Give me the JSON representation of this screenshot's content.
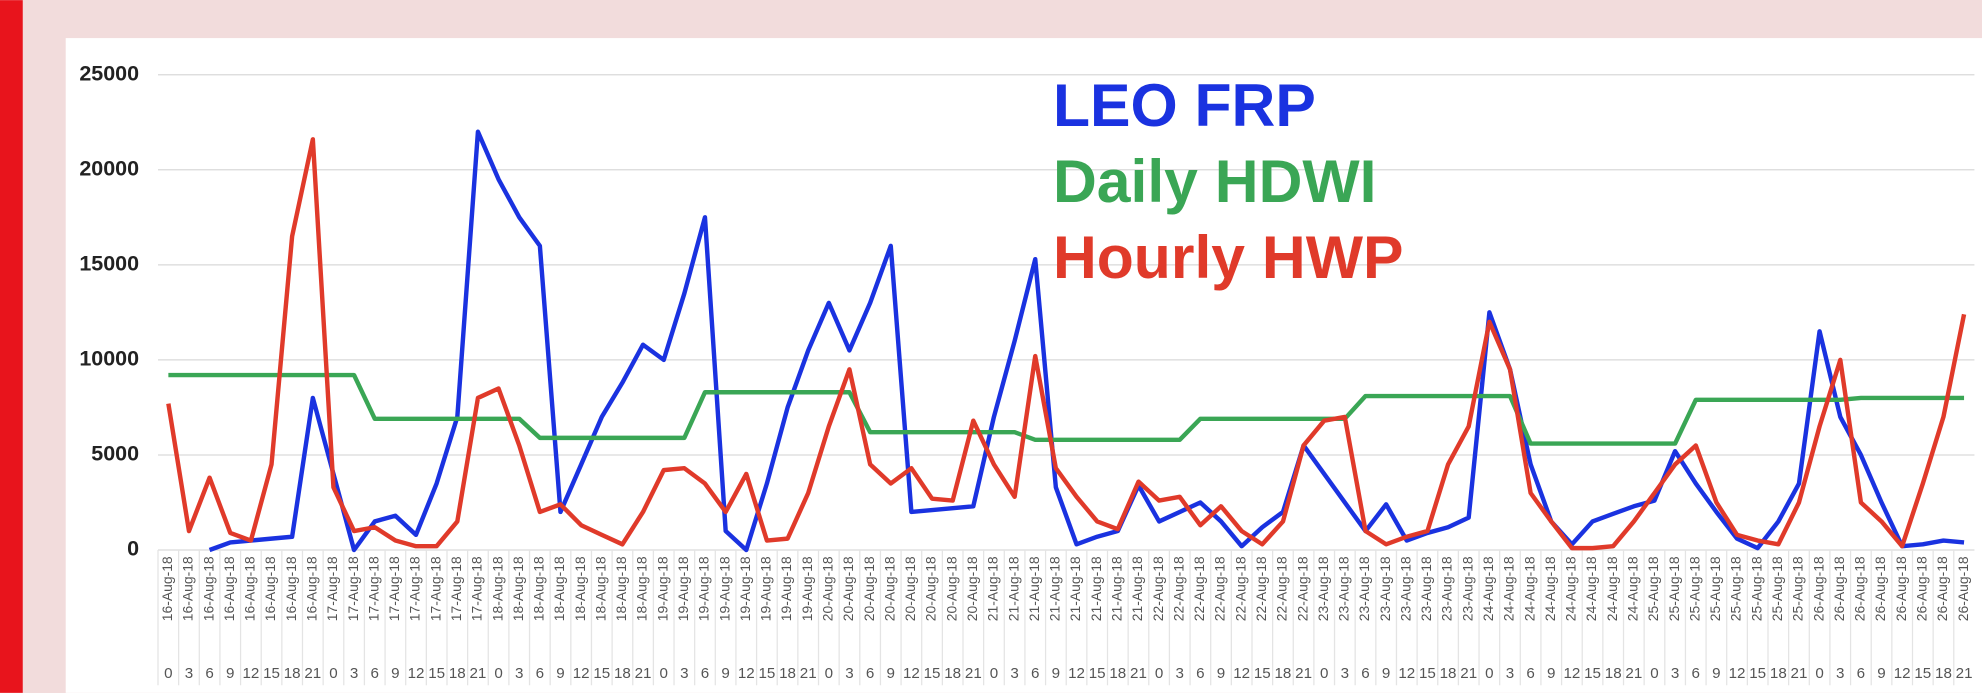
{
  "chart_data": {
    "type": "line",
    "categories": [
      "0",
      "3",
      "6",
      "9",
      "12",
      "15",
      "18",
      "21",
      "0",
      "3",
      "6",
      "9",
      "12",
      "15",
      "18",
      "21",
      "0",
      "3",
      "6",
      "9",
      "12",
      "15",
      "18",
      "21",
      "0",
      "3",
      "6",
      "9",
      "12",
      "15",
      "18",
      "21",
      "0",
      "3",
      "6",
      "9",
      "12",
      "15",
      "18",
      "21",
      "0",
      "3",
      "6",
      "9",
      "12",
      "15",
      "18",
      "21",
      "0",
      "3",
      "6",
      "9",
      "12",
      "15",
      "18",
      "21",
      "0",
      "3",
      "6",
      "9",
      "12",
      "15",
      "18",
      "21",
      "0",
      "3",
      "6",
      "9",
      "12",
      "15",
      "18",
      "21",
      "0",
      "3",
      "6",
      "9",
      "12",
      "15",
      "18",
      "21",
      "0",
      "3",
      "6",
      "9",
      "12",
      "15",
      "18",
      "21"
    ],
    "category_dates": [
      "16-Aug-18",
      "16-Aug-18",
      "16-Aug-18",
      "16-Aug-18",
      "16-Aug-18",
      "16-Aug-18",
      "16-Aug-18",
      "16-Aug-18",
      "17-Aug-18",
      "17-Aug-18",
      "17-Aug-18",
      "17-Aug-18",
      "17-Aug-18",
      "17-Aug-18",
      "17-Aug-18",
      "17-Aug-18",
      "18-Aug-18",
      "18-Aug-18",
      "18-Aug-18",
      "18-Aug-18",
      "18-Aug-18",
      "18-Aug-18",
      "18-Aug-18",
      "18-Aug-18",
      "19-Aug-18",
      "19-Aug-18",
      "19-Aug-18",
      "19-Aug-18",
      "19-Aug-18",
      "19-Aug-18",
      "19-Aug-18",
      "19-Aug-18",
      "20-Aug-18",
      "20-Aug-18",
      "20-Aug-18",
      "20-Aug-18",
      "20-Aug-18",
      "20-Aug-18",
      "20-Aug-18",
      "20-Aug-18",
      "21-Aug-18",
      "21-Aug-18",
      "21-Aug-18",
      "21-Aug-18",
      "21-Aug-18",
      "21-Aug-18",
      "21-Aug-18",
      "21-Aug-18",
      "22-Aug-18",
      "22-Aug-18",
      "22-Aug-18",
      "22-Aug-18",
      "22-Aug-18",
      "22-Aug-18",
      "22-Aug-18",
      "22-Aug-18",
      "23-Aug-18",
      "23-Aug-18",
      "23-Aug-18",
      "23-Aug-18",
      "23-Aug-18",
      "23-Aug-18",
      "23-Aug-18",
      "23-Aug-18",
      "24-Aug-18",
      "24-Aug-18",
      "24-Aug-18",
      "24-Aug-18",
      "24-Aug-18",
      "24-Aug-18",
      "24-Aug-18",
      "24-Aug-18",
      "25-Aug-18",
      "25-Aug-18",
      "25-Aug-18",
      "25-Aug-18",
      "25-Aug-18",
      "25-Aug-18",
      "25-Aug-18",
      "25-Aug-18",
      "26-Aug-18",
      "26-Aug-18",
      "26-Aug-18",
      "26-Aug-18",
      "26-Aug-18",
      "26-Aug-18",
      "26-Aug-18",
      "26-Aug-18"
    ],
    "series": [
      {
        "name": "LEO FRP",
        "color": "#1a32e0",
        "values": [
          null,
          null,
          0,
          400,
          500,
          600,
          700,
          8000,
          4000,
          0,
          1500,
          1800,
          800,
          3500,
          7000,
          22000,
          19500,
          17500,
          16000,
          2000,
          4500,
          7000,
          8800,
          10800,
          10000,
          13500,
          17500,
          1000,
          0,
          3500,
          7500,
          10500,
          13000,
          10500,
          13000,
          16000,
          2000,
          2100,
          2200,
          2300,
          7000,
          11000,
          15300,
          3300,
          300,
          700,
          1000,
          3400,
          1500,
          2000,
          2500,
          1500,
          200,
          1200,
          2000,
          5500,
          4000,
          2500,
          1000,
          2400,
          500,
          900,
          1200,
          1700,
          12500,
          9500,
          4500,
          1500,
          300,
          1500,
          1900,
          2300,
          2600,
          5200,
          3500,
          2000,
          600,
          100,
          1500,
          3500,
          11500,
          7000,
          5000,
          2500,
          200,
          300,
          500,
          400
        ]
      },
      {
        "name": "Daily HDWI",
        "color": "#3aa655",
        "values": [
          9200,
          9200,
          9200,
          9200,
          9200,
          9200,
          9200,
          9200,
          9200,
          9200,
          6900,
          6900,
          6900,
          6900,
          6900,
          6900,
          6900,
          6900,
          5900,
          5900,
          5900,
          5900,
          5900,
          5900,
          5900,
          5900,
          8300,
          8300,
          8300,
          8300,
          8300,
          8300,
          8300,
          8300,
          6200,
          6200,
          6200,
          6200,
          6200,
          6200,
          6200,
          6200,
          5800,
          5800,
          5800,
          5800,
          5800,
          5800,
          5800,
          5800,
          6900,
          6900,
          6900,
          6900,
          6900,
          6900,
          6900,
          6900,
          8100,
          8100,
          8100,
          8100,
          8100,
          8100,
          8100,
          8100,
          5600,
          5600,
          5600,
          5600,
          5600,
          5600,
          5600,
          5600,
          7900,
          7900,
          7900,
          7900,
          7900,
          7900,
          7900,
          7900,
          8000,
          8000,
          8000,
          8000,
          8000,
          8000
        ]
      },
      {
        "name": "Hourly HWP",
        "color": "#e03a2a",
        "values": [
          7700,
          1000,
          3800,
          900,
          500,
          4500,
          16500,
          21600,
          3300,
          1000,
          1200,
          500,
          200,
          200,
          1500,
          8000,
          8500,
          5500,
          2000,
          2400,
          1300,
          800,
          300,
          2000,
          4200,
          4300,
          3500,
          2000,
          4000,
          500,
          600,
          3000,
          6500,
          9500,
          4500,
          3500,
          4300,
          2700,
          2600,
          6800,
          4500,
          2800,
          10200,
          4300,
          2800,
          1500,
          1100,
          3600,
          2600,
          2800,
          1300,
          2300,
          1000,
          300,
          1500,
          5500,
          6800,
          7000,
          1000,
          300,
          700,
          1000,
          4500,
          6500,
          12000,
          9500,
          3000,
          1500,
          100,
          100,
          200,
          1500,
          3000,
          4500,
          5500,
          2500,
          800,
          500,
          300,
          2500,
          6500,
          10000,
          2500,
          1500,
          200,
          3500,
          7000,
          12400
        ]
      }
    ],
    "ylim": [
      0,
      25000
    ],
    "yticks": [
      0,
      5000,
      10000,
      15000,
      20000,
      25000
    ],
    "grid": true
  }
}
